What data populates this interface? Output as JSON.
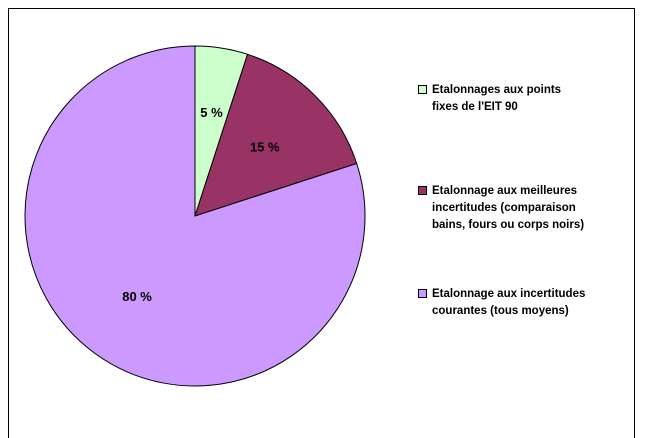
{
  "chart_data": {
    "type": "pie",
    "title": "",
    "slices": [
      {
        "label": "Etalonnages aux points fixes de l'EIT 90",
        "legend_lines": [
          "Etalonnages aux points",
          "fixes de l'EIT 90"
        ],
        "value": 5,
        "value_label": "5 %",
        "color": "#ccffcc"
      },
      {
        "label": "Etalonnage aux meilleures incertitudes (comparaison bains, fours ou corps noirs)",
        "legend_lines": [
          "Etalonnage aux meilleures",
          "incertitudes (comparaison",
          "bains, fours ou corps noirs)"
        ],
        "value": 15,
        "value_label": "15 %",
        "color": "#993366"
      },
      {
        "label": "Etalonnage aux incertitudes courantes (tous moyens)",
        "legend_lines": [
          "Etalonnage aux incertitudes",
          "courantes (tous moyens)"
        ],
        "value": 80,
        "value_label": "80 %",
        "color": "#cc99ff"
      }
    ],
    "start_angle": "12 o'clock",
    "direction": "clockwise",
    "legend_position": "right"
  }
}
